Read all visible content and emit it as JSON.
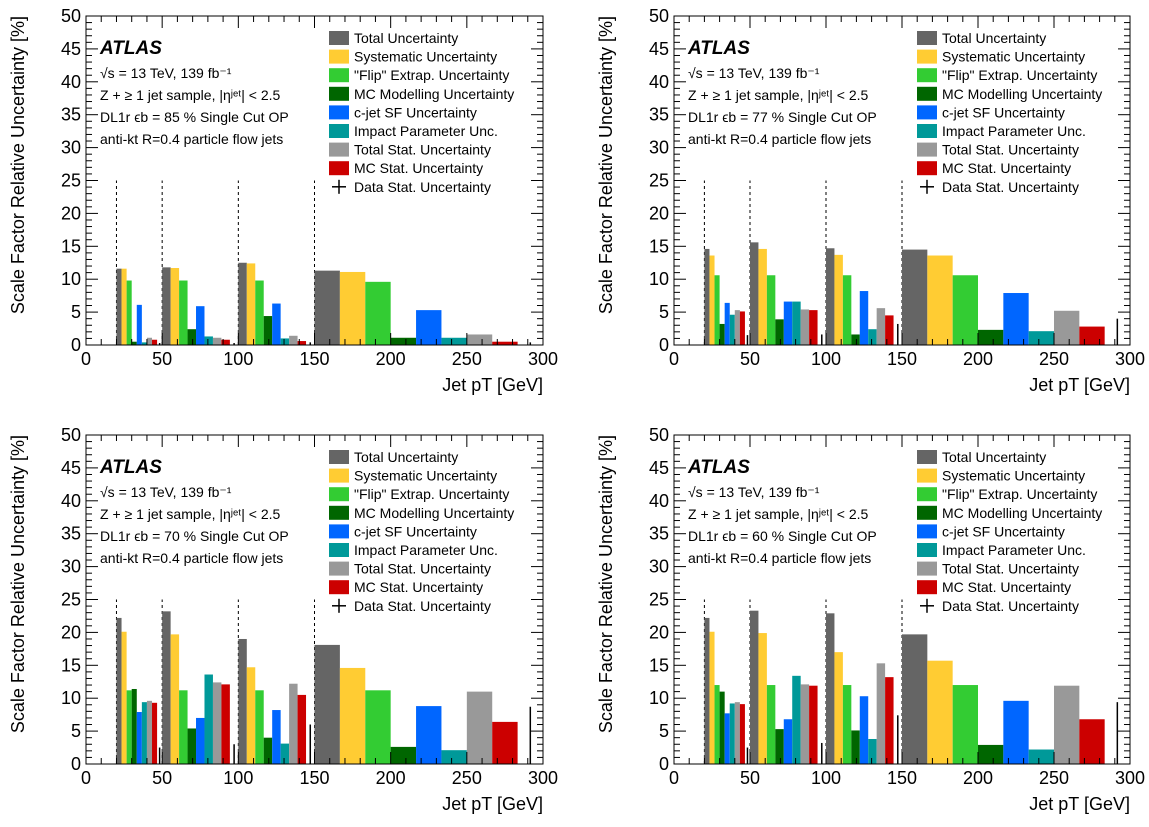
{
  "chart_data": [
    {
      "type": "bar",
      "atlas_label": "ATLAS",
      "info_lines": [
        "√s = 13 TeV, 139 fb⁻¹",
        "Z + ≥ 1 jet sample, |ηʲᵉᵗ| < 2.5",
        "DL1r ϵb = 85 % Single Cut OP",
        "anti-kt R=0.4 particle flow jets"
      ],
      "xlabel": "Jet pT [GeV]",
      "ylabel": "Scale Factor Relative Uncertainty [%]",
      "xlim": [
        0,
        300
      ],
      "ylim": [
        0,
        50
      ],
      "xticks": [
        0,
        50,
        100,
        150,
        200,
        250,
        300
      ],
      "yticks": [
        0,
        5,
        10,
        15,
        20,
        25,
        30,
        35,
        40,
        45,
        50
      ],
      "bins": [
        [
          20,
          50
        ],
        [
          50,
          100
        ],
        [
          100,
          150
        ],
        [
          150,
          300
        ]
      ],
      "series": [
        {
          "name": "Total Uncertainty",
          "values": [
            11.6,
            11.8,
            12.5,
            11.3
          ]
        },
        {
          "name": "Systematic Uncertainty",
          "values": [
            11.6,
            11.7,
            12.4,
            11.1
          ]
        },
        {
          "name": "\"Flip\" Extrap. Uncertainty",
          "values": [
            9.8,
            9.8,
            9.8,
            9.6
          ]
        },
        {
          "name": "MC Modelling Uncertainty",
          "values": [
            0.5,
            2.4,
            4.4,
            1.1
          ]
        },
        {
          "name": "c-jet SF Uncertainty",
          "values": [
            6.1,
            5.9,
            6.3,
            5.3
          ]
        },
        {
          "name": "Impact Parameter Unc.",
          "values": [
            0.4,
            1.3,
            1.0,
            1.1
          ]
        },
        {
          "name": "Total Stat. Uncertainty",
          "values": [
            1.1,
            1.1,
            1.4,
            1.6
          ]
        },
        {
          "name": "MC Stat. Uncertainty",
          "values": [
            0.8,
            0.8,
            0.6,
            0.5
          ]
        },
        {
          "name": "Data Stat. Uncertainty",
          "values": [
            0.3,
            0.3,
            0.4,
            0.4
          ]
        }
      ]
    },
    {
      "type": "bar",
      "atlas_label": "ATLAS",
      "info_lines": [
        "√s = 13 TeV, 139 fb⁻¹",
        "Z + ≥ 1 jet sample, |ηʲᵉᵗ| < 2.5",
        "DL1r ϵb = 77 % Single Cut OP",
        "anti-kt R=0.4 particle flow jets"
      ],
      "xlabel": "Jet pT [GeV]",
      "ylabel": "Scale Factor Relative Uncertainty [%]",
      "xlim": [
        0,
        300
      ],
      "ylim": [
        0,
        50
      ],
      "xticks": [
        0,
        50,
        100,
        150,
        200,
        250,
        300
      ],
      "yticks": [
        0,
        5,
        10,
        15,
        20,
        25,
        30,
        35,
        40,
        45,
        50
      ],
      "bins": [
        [
          20,
          50
        ],
        [
          50,
          100
        ],
        [
          100,
          150
        ],
        [
          150,
          300
        ]
      ],
      "series": [
        {
          "name": "Total Uncertainty",
          "values": [
            14.6,
            15.6,
            14.7,
            14.5
          ]
        },
        {
          "name": "Systematic Uncertainty",
          "values": [
            13.6,
            14.6,
            13.7,
            13.6
          ]
        },
        {
          "name": "\"Flip\" Extrap. Uncertainty",
          "values": [
            10.6,
            10.6,
            10.6,
            10.6
          ]
        },
        {
          "name": "MC Modelling Uncertainty",
          "values": [
            3.2,
            3.9,
            1.6,
            2.3
          ]
        },
        {
          "name": "c-jet SF Uncertainty",
          "values": [
            6.4,
            6.6,
            8.2,
            7.9
          ]
        },
        {
          "name": "Impact Parameter Unc.",
          "values": [
            4.6,
            6.6,
            2.4,
            2.1
          ]
        },
        {
          "name": "Total Stat. Uncertainty",
          "values": [
            5.3,
            5.4,
            5.6,
            5.2
          ]
        },
        {
          "name": "MC Stat. Uncertainty",
          "values": [
            5.1,
            5.3,
            4.5,
            2.8
          ]
        },
        {
          "name": "Data Stat. Uncertainty",
          "values": [
            1.5,
            1.6,
            3.2,
            4.0
          ]
        }
      ]
    },
    {
      "type": "bar",
      "atlas_label": "ATLAS",
      "info_lines": [
        "√s = 13 TeV, 139 fb⁻¹",
        "Z + ≥ 1 jet sample, |ηʲᵉᵗ| < 2.5",
        "DL1r ϵb = 70 % Single Cut OP",
        "anti-kt R=0.4 particle flow jets"
      ],
      "xlabel": "Jet pT [GeV]",
      "ylabel": "Scale Factor Relative Uncertainty [%]",
      "xlim": [
        0,
        300
      ],
      "ylim": [
        0,
        50
      ],
      "xticks": [
        0,
        50,
        100,
        150,
        200,
        250,
        300
      ],
      "yticks": [
        0,
        5,
        10,
        15,
        20,
        25,
        30,
        35,
        40,
        45,
        50
      ],
      "bins": [
        [
          20,
          50
        ],
        [
          50,
          100
        ],
        [
          100,
          150
        ],
        [
          150,
          300
        ]
      ],
      "series": [
        {
          "name": "Total Uncertainty",
          "values": [
            22.2,
            23.2,
            19.0,
            18.1
          ]
        },
        {
          "name": "Systematic Uncertainty",
          "values": [
            20.1,
            19.7,
            14.7,
            14.6
          ]
        },
        {
          "name": "\"Flip\" Extrap. Uncertainty",
          "values": [
            11.2,
            11.2,
            11.2,
            11.2
          ]
        },
        {
          "name": "MC Modelling Uncertainty",
          "values": [
            11.4,
            5.4,
            4.0,
            2.6
          ]
        },
        {
          "name": "c-jet SF Uncertainty",
          "values": [
            7.9,
            7.0,
            8.2,
            8.8
          ]
        },
        {
          "name": "Impact Parameter Unc.",
          "values": [
            9.4,
            13.6,
            3.1,
            2.1
          ]
        },
        {
          "name": "Total Stat. Uncertainty",
          "values": [
            9.6,
            12.4,
            12.2,
            11.0
          ]
        },
        {
          "name": "MC Stat. Uncertainty",
          "values": [
            9.3,
            12.1,
            10.5,
            6.4
          ]
        },
        {
          "name": "Data Stat. Uncertainty",
          "values": [
            2.5,
            3.0,
            6.0,
            8.7
          ]
        }
      ]
    },
    {
      "type": "bar",
      "atlas_label": "ATLAS",
      "info_lines": [
        "√s = 13 TeV, 139 fb⁻¹",
        "Z + ≥ 1 jet sample, |ηʲᵉᵗ| < 2.5",
        "DL1r ϵb = 60 % Single Cut OP",
        "anti-kt R=0.4 particle flow jets"
      ],
      "xlabel": "Jet pT [GeV]",
      "ylabel": "Scale Factor Relative Uncertainty [%]",
      "xlim": [
        0,
        300
      ],
      "ylim": [
        0,
        50
      ],
      "xticks": [
        0,
        50,
        100,
        150,
        200,
        250,
        300
      ],
      "yticks": [
        0,
        5,
        10,
        15,
        20,
        25,
        30,
        35,
        40,
        45,
        50
      ],
      "bins": [
        [
          20,
          50
        ],
        [
          50,
          100
        ],
        [
          100,
          150
        ],
        [
          150,
          300
        ]
      ],
      "series": [
        {
          "name": "Total Uncertainty",
          "values": [
            22.2,
            23.3,
            22.9,
            19.7
          ]
        },
        {
          "name": "Systematic Uncertainty",
          "values": [
            20.1,
            19.9,
            17.0,
            15.7
          ]
        },
        {
          "name": "\"Flip\" Extrap. Uncertainty",
          "values": [
            12.0,
            12.0,
            12.0,
            12.0
          ]
        },
        {
          "name": "MC Modelling Uncertainty",
          "values": [
            11.0,
            5.3,
            5.1,
            2.9
          ]
        },
        {
          "name": "c-jet SF Uncertainty",
          "values": [
            7.7,
            6.8,
            10.3,
            9.6
          ]
        },
        {
          "name": "Impact Parameter Unc.",
          "values": [
            9.2,
            13.4,
            3.8,
            2.2
          ]
        },
        {
          "name": "Total Stat. Uncertainty",
          "values": [
            9.4,
            12.1,
            15.3,
            11.9
          ]
        },
        {
          "name": "MC Stat. Uncertainty",
          "values": [
            9.1,
            11.9,
            13.2,
            6.8
          ]
        },
        {
          "name": "Data Stat. Uncertainty",
          "values": [
            2.5,
            3.2,
            7.4,
            9.4
          ]
        }
      ]
    }
  ],
  "colors": {
    "Total Uncertainty": "#656565",
    "Systematic Uncertainty": "#ffcc33",
    "\"Flip\" Extrap. Uncertainty": "#33cc33",
    "MC Modelling Uncertainty": "#006600",
    "c-jet SF Uncertainty": "#0066ff",
    "Impact Parameter Unc.": "#009999",
    "Total Stat. Uncertainty": "#999999",
    "MC Stat. Uncertainty": "#cc0000",
    "Data Stat. Uncertainty": "#000000"
  }
}
